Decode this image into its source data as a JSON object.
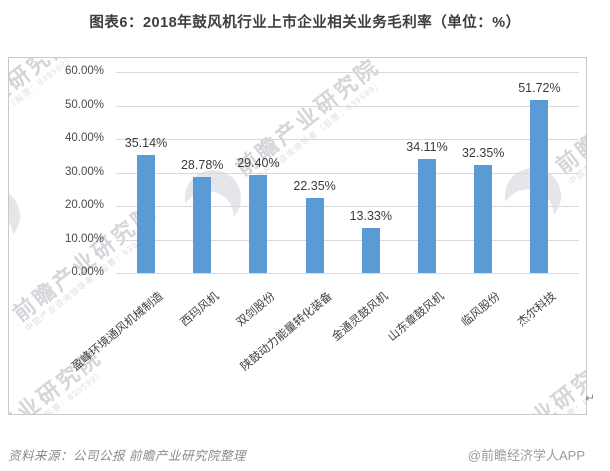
{
  "chart_data": {
    "type": "bar",
    "title": "图表6：2018年鼓风机行业上市企业相关业务毛利率（单位：%）",
    "categories": [
      "盈峰环境通风机械制造",
      "西玛风机",
      "双剑股份",
      "陕鼓动力能量转化装备",
      "金通灵鼓风机",
      "山东章鼓风机",
      "临风股份",
      "杰尔科技"
    ],
    "values": [
      35.14,
      28.78,
      29.4,
      22.35,
      13.33,
      34.11,
      32.35,
      51.72
    ],
    "value_labels": [
      "35.14%",
      "28.78%",
      "29.40%",
      "22.35%",
      "13.33%",
      "34.11%",
      "32.35%",
      "51.72%"
    ],
    "yticks": [
      "60.00%",
      "50.00%",
      "40.00%",
      "30.00%",
      "20.00%",
      "10.00%",
      "0.00%"
    ],
    "ylim": [
      0,
      60
    ],
    "unit": "%",
    "grid": true,
    "legend": "none",
    "bar_color": "#5b9bd5"
  },
  "watermark": {
    "brand": "前瞻产业研究院",
    "tagline": "中国产业咨询领导者（股票：839599）"
  },
  "footer": {
    "source": "资料来源：公司公报 前瞻产业研究院整理",
    "attribution": "@前瞻经济学人APP"
  },
  "misc": {
    "return_mark": "↵"
  }
}
